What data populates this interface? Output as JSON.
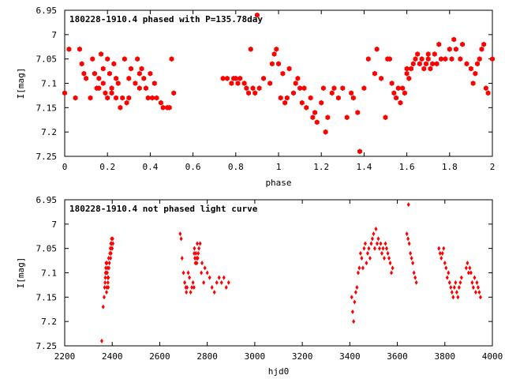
{
  "chart_data": [
    {
      "type": "scatter",
      "title": "180228-1910.4 phased with P=135.78day",
      "xlabel": "phase",
      "ylabel": "I[mag]",
      "xlim": [
        0,
        2
      ],
      "ylim": [
        6.95,
        7.25
      ],
      "y_inverted": true,
      "x_ticks": [
        "0",
        "0.2",
        "0.4",
        "0.6",
        "0.8",
        "1",
        "1.2",
        "1.4",
        "1.6",
        "1.8",
        "2"
      ],
      "y_ticks": [
        "6.95",
        "7",
        "7.05",
        "7.1",
        "7.15",
        "7.2",
        "7.25"
      ],
      "marker": "filled-hexagon",
      "color": "#ff0000",
      "series": [
        {
          "x": [
            0.0,
            0.02,
            0.05,
            0.07,
            0.08,
            0.09,
            0.1,
            0.12,
            0.13,
            0.14,
            0.15,
            0.16,
            0.16,
            0.17,
            0.18,
            0.18,
            0.19,
            0.2,
            0.2,
            0.21,
            0.22,
            0.22,
            0.23,
            0.24,
            0.24,
            0.25,
            0.26,
            0.27,
            0.28,
            0.29,
            0.3,
            0.3,
            0.31,
            0.33,
            0.34,
            0.35,
            0.35,
            0.36,
            0.37,
            0.38,
            0.39,
            0.4,
            0.41,
            0.42,
            0.43,
            0.45,
            0.46,
            0.48,
            0.49,
            0.5,
            0.51,
            0.74,
            0.76,
            0.78,
            0.79,
            0.8,
            0.81,
            0.82,
            0.84,
            0.85,
            0.86,
            0.87,
            0.88,
            0.89,
            0.9,
            0.91,
            0.93,
            0.96,
            0.97,
            0.98,
            0.99,
            1.0,
            1.01,
            1.02,
            1.03,
            1.04,
            1.05,
            1.07,
            1.08,
            1.09,
            1.1,
            1.11,
            1.12,
            1.13,
            1.15,
            1.16,
            1.17,
            1.18,
            1.2,
            1.21,
            1.22,
            1.23,
            1.25,
            1.26,
            1.28,
            1.3,
            1.32,
            1.34,
            1.35,
            1.37,
            1.38,
            1.4,
            1.42,
            1.45,
            1.46,
            1.48,
            1.5,
            1.51,
            1.52,
            1.53,
            1.54,
            1.55,
            1.56,
            1.57,
            1.58,
            1.59,
            1.6,
            1.6,
            1.61,
            1.62,
            1.63,
            1.64,
            1.65,
            1.66,
            1.67,
            1.68,
            1.69,
            1.7,
            1.7,
            1.71,
            1.72,
            1.73,
            1.74,
            1.75,
            1.76,
            1.78,
            1.8,
            1.81,
            1.82,
            1.83,
            1.85,
            1.86,
            1.88,
            1.9,
            1.91,
            1.92,
            1.93,
            1.94,
            1.95,
            1.96,
            1.97,
            1.98,
            2.0
          ],
          "y": [
            7.12,
            7.03,
            7.13,
            7.03,
            7.06,
            7.08,
            7.09,
            7.13,
            7.05,
            7.08,
            7.11,
            7.09,
            7.11,
            7.04,
            7.07,
            7.1,
            7.12,
            7.05,
            7.13,
            7.08,
            7.11,
            7.12,
            7.06,
            7.09,
            7.13,
            7.1,
            7.15,
            7.13,
            7.05,
            7.14,
            7.09,
            7.13,
            7.07,
            7.1,
            7.05,
            7.08,
            7.11,
            7.07,
            7.09,
            7.11,
            7.13,
            7.08,
            7.13,
            7.1,
            7.13,
            7.14,
            7.15,
            7.15,
            7.15,
            7.05,
            7.12,
            7.09,
            7.09,
            7.1,
            7.09,
            7.09,
            7.1,
            7.09,
            7.1,
            7.11,
            7.12,
            7.03,
            7.11,
            7.12,
            6.96,
            7.11,
            7.09,
            7.1,
            7.06,
            7.04,
            7.03,
            7.06,
            7.13,
            7.08,
            7.14,
            7.13,
            7.07,
            7.12,
            7.1,
            7.09,
            7.11,
            7.14,
            7.11,
            7.15,
            7.13,
            7.17,
            7.16,
            7.18,
            7.14,
            7.11,
            7.2,
            7.17,
            7.12,
            7.11,
            7.13,
            7.11,
            7.17,
            7.12,
            7.13,
            7.16,
            7.24,
            7.11,
            7.05,
            7.08,
            7.03,
            7.09,
            7.17,
            7.05,
            7.05,
            7.1,
            7.12,
            7.13,
            7.11,
            7.14,
            7.11,
            7.12,
            7.07,
            7.08,
            7.09,
            7.07,
            7.06,
            7.05,
            7.04,
            7.06,
            7.05,
            7.07,
            7.06,
            7.05,
            7.04,
            7.07,
            7.06,
            7.04,
            7.06,
            7.02,
            7.05,
            7.05,
            7.03,
            7.05,
            7.01,
            7.03,
            7.05,
            7.02,
            7.06,
            7.07,
            7.1,
            7.08,
            7.06,
            7.05,
            7.03,
            7.02,
            7.11,
            7.12,
            7.05
          ]
        }
      ]
    },
    {
      "type": "scatter",
      "title": "180228-1910.4 not phased light curve",
      "xlabel": "hjd0",
      "ylabel": "I[mag]",
      "xlim": [
        2200,
        4000
      ],
      "ylim": [
        6.95,
        7.25
      ],
      "y_inverted": true,
      "x_ticks": [
        "2200",
        "2400",
        "2600",
        "2800",
        "3000",
        "3200",
        "3400",
        "3600",
        "3800",
        "4000"
      ],
      "y_ticks": [
        "6.95",
        "7",
        "7.05",
        "7.1",
        "7.15",
        "7.2",
        "7.25"
      ],
      "marker": "filled-diamond",
      "color": "#ff0000",
      "series": [
        {
          "x": [
            2356,
            2362,
            2366,
            2368,
            2370,
            2371,
            2372,
            2373,
            2374,
            2375,
            2376,
            2377,
            2378,
            2379,
            2380,
            2381,
            2382,
            2383,
            2384,
            2385,
            2386,
            2388,
            2390,
            2392,
            2393,
            2394,
            2395,
            2396,
            2397,
            2398,
            2400,
            2402,
            2403,
            2686,
            2690,
            2694,
            2700,
            2705,
            2710,
            2712,
            2715,
            2720,
            2725,
            2730,
            2735,
            2740,
            2744,
            2745,
            2746,
            2748,
            2750,
            2752,
            2755,
            2756,
            2758,
            2760,
            2762,
            2765,
            2770,
            2775,
            2778,
            2785,
            2790,
            2800,
            2810,
            2820,
            2830,
            2840,
            2850,
            2860,
            2870,
            2880,
            2890,
            3408,
            3412,
            3416,
            3420,
            3425,
            3430,
            3435,
            3440,
            3445,
            3450,
            3455,
            3460,
            3465,
            3470,
            3475,
            3480,
            3485,
            3490,
            3495,
            3500,
            3505,
            3510,
            3515,
            3520,
            3525,
            3530,
            3535,
            3540,
            3545,
            3550,
            3555,
            3560,
            3565,
            3570,
            3575,
            3580,
            3640,
            3645,
            3650,
            3655,
            3660,
            3665,
            3670,
            3675,
            3680,
            3775,
            3780,
            3785,
            3790,
            3795,
            3800,
            3805,
            3810,
            3815,
            3820,
            3825,
            3830,
            3835,
            3840,
            3845,
            3850,
            3855,
            3860,
            3865,
            3870,
            3890,
            3895,
            3900,
            3905,
            3910,
            3915,
            3920,
            3925,
            3930,
            3935,
            3940,
            3945,
            3950
          ],
          "y": [
            7.24,
            7.17,
            7.15,
            7.13,
            7.12,
            7.11,
            7.1,
            7.09,
            7.08,
            7.1,
            7.14,
            7.13,
            7.08,
            7.1,
            7.09,
            7.11,
            7.12,
            7.13,
            7.11,
            7.07,
            7.09,
            7.08,
            7.06,
            7.05,
            7.07,
            7.04,
            7.06,
            7.05,
            7.03,
            7.04,
            7.05,
            7.03,
            7.04,
            7.02,
            7.03,
            7.07,
            7.1,
            7.12,
            7.13,
            7.14,
            7.13,
            7.1,
            7.11,
            7.14,
            7.13,
            7.12,
            7.13,
            7.06,
            7.05,
            7.07,
            7.08,
            7.06,
            7.07,
            7.08,
            7.04,
            7.07,
            7.06,
            7.05,
            7.04,
            7.1,
            7.08,
            7.12,
            7.09,
            7.1,
            7.11,
            7.13,
            7.14,
            7.12,
            7.11,
            7.12,
            7.11,
            7.13,
            7.12,
            7.15,
            7.18,
            7.2,
            7.16,
            7.14,
            7.13,
            7.1,
            7.09,
            7.06,
            7.07,
            7.09,
            7.05,
            7.04,
            7.08,
            7.06,
            7.05,
            7.07,
            7.04,
            7.03,
            7.02,
            7.05,
            7.01,
            7.04,
            7.03,
            7.05,
            7.04,
            7.06,
            7.05,
            7.07,
            7.04,
            7.05,
            7.06,
            7.07,
            7.08,
            7.1,
            7.09,
            7.02,
            7.03,
            7.04,
            7.06,
            7.07,
            7.08,
            7.1,
            7.11,
            7.12,
            7.05,
            7.06,
            7.07,
            7.06,
            7.05,
            7.08,
            7.09,
            7.11,
            7.1,
            7.12,
            7.13,
            7.14,
            7.15,
            7.13,
            7.12,
            7.14,
            7.15,
            7.13,
            7.12,
            7.11,
            7.09,
            7.08,
            7.1,
            7.09,
            7.1,
            7.12,
            7.13,
            7.11,
            7.14,
            7.12,
            7.13,
            7.14,
            7.15
          ]
        },
        {
          "x": [
            3647
          ],
          "y": [
            6.96
          ]
        }
      ]
    }
  ]
}
